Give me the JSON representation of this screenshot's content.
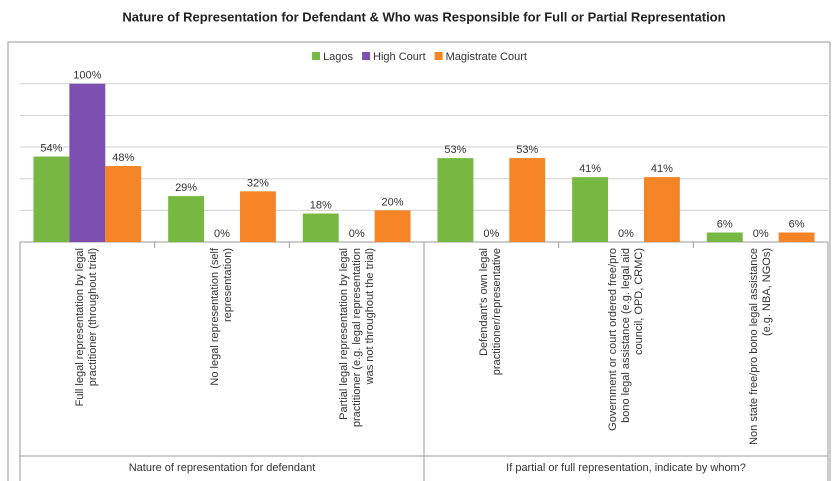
{
  "chart_data": {
    "type": "bar",
    "title": "Nature of Representation for Defendant & Who was Responsible for Full or Partial Representation",
    "categories": [
      "Full legal representation by legal practitioner (throughout trial)",
      "No legal representation (self representation)",
      "Partial legal representation by legal practitioner (e.g. legal representation was not throughout the trial)",
      "Defendant's own legal practitioner/representative",
      "Government or court ordered free/pro bono legal assistance (e.g. legal aid council, OPD, CRMC)",
      "Non state free/pro bono legal assistance (e.g. NBA, NGOs)"
    ],
    "group_labels": [
      "Nature of representation for defendant",
      "If partial or full representation, indicate by whom?"
    ],
    "series": [
      {
        "name": "Lagos",
        "color": "#77b843",
        "values": [
          54,
          29,
          18,
          53,
          41,
          6
        ],
        "value_labels": [
          "54%",
          "29%",
          "18%",
          "53%",
          "41%",
          "6%"
        ]
      },
      {
        "name": "High Court",
        "color": "#7d4fb0",
        "values": [
          100,
          0,
          0,
          0,
          0,
          0
        ],
        "value_labels": [
          "100%",
          "0%",
          "0%",
          "0%",
          "0%",
          "0%"
        ]
      },
      {
        "name": "Magistrate Court",
        "color": "#f58426",
        "values": [
          48,
          32,
          20,
          53,
          41,
          6
        ],
        "value_labels": [
          "48%",
          "32%",
          "20%",
          "53%",
          "41%",
          "6%"
        ]
      }
    ],
    "ylim": [
      0,
      115
    ],
    "yticks": [
      0,
      20,
      40,
      60,
      80,
      100
    ],
    "grid": true,
    "legend": "top"
  }
}
